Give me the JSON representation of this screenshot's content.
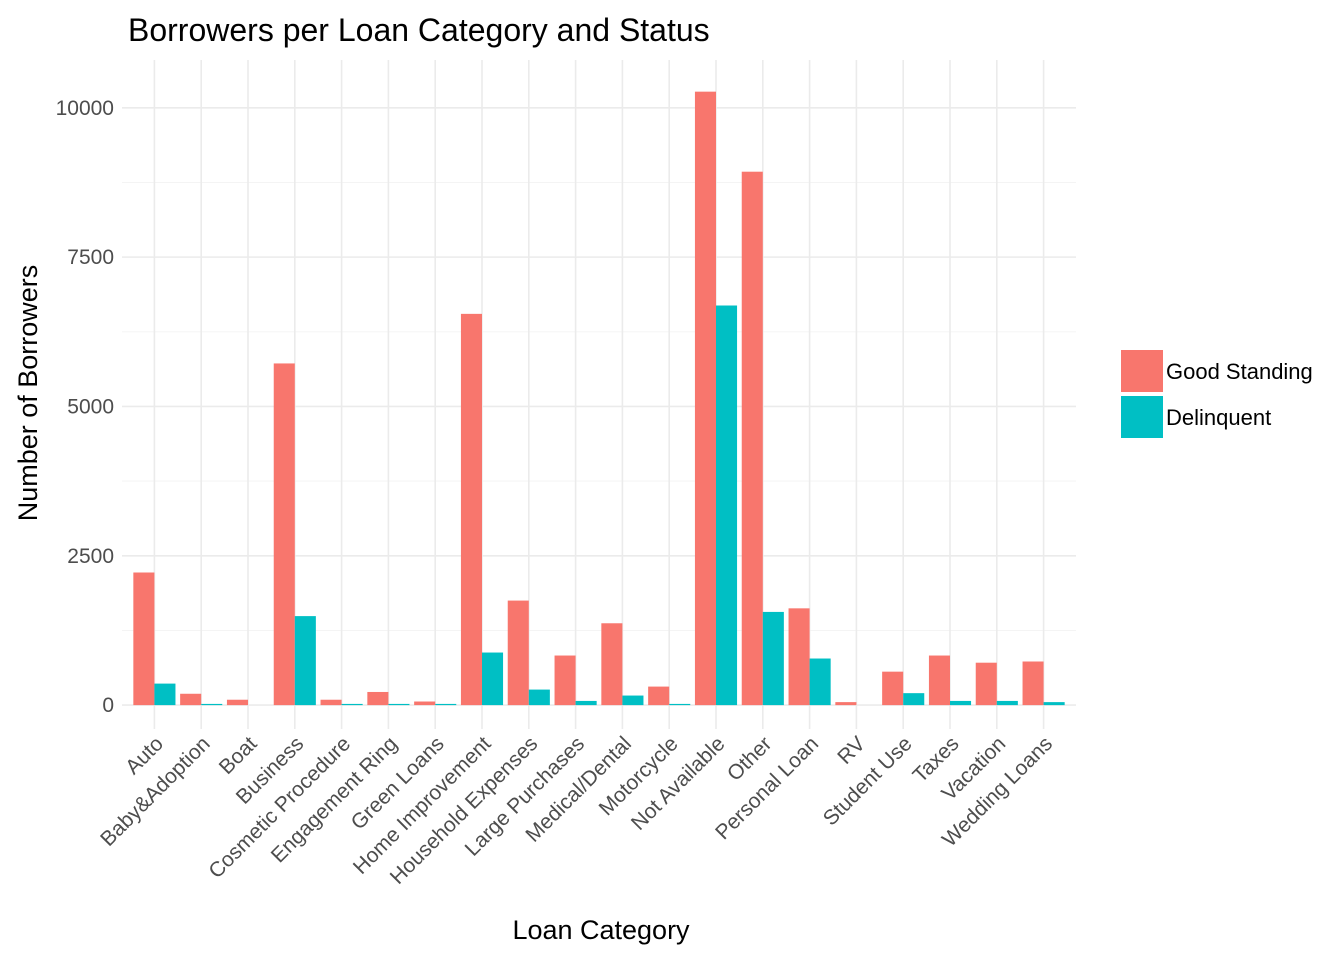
{
  "chart_data": {
    "type": "bar",
    "title": "Borrowers per Loan Category and Status",
    "xlabel": "Loan Category",
    "ylabel": "Number of Borrowers",
    "ylim": [
      -400,
      10800
    ],
    "yticks": [
      0,
      2500,
      5000,
      7500,
      10000
    ],
    "grid": true,
    "legend_position": "right",
    "categories": [
      "Auto",
      "Baby&Adoption",
      "Boat",
      "Business",
      "Cosmetic Procedure",
      "Engagement Ring",
      "Green Loans",
      "Home Improvement",
      "Household Expenses",
      "Large Purchases",
      "Medical/Dental",
      "Motorcycle",
      "Not Available",
      "Other",
      "Personal Loan",
      "RV",
      "Student Use",
      "Taxes",
      "Vacation",
      "Wedding Loans"
    ],
    "series": [
      {
        "name": "Good Standing",
        "color": "#F8766D",
        "values": [
          2220,
          190,
          90,
          5720,
          90,
          220,
          60,
          6550,
          1750,
          830,
          1370,
          310,
          10270,
          8930,
          1620,
          50,
          560,
          830,
          710,
          730
        ]
      },
      {
        "name": "Delinquent",
        "color": "#00BFC4",
        "values": [
          360,
          20,
          0,
          1490,
          20,
          20,
          20,
          880,
          260,
          70,
          160,
          20,
          6690,
          1560,
          780,
          0,
          200,
          70,
          70,
          50
        ]
      }
    ]
  }
}
